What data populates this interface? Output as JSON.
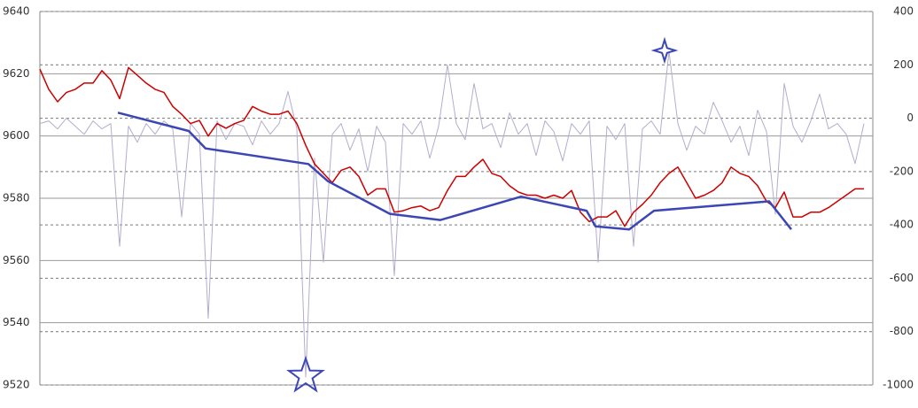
{
  "chart_data": {
    "type": "line",
    "ylim": [
      9520,
      9640
    ],
    "yticks": [
      9520,
      9540,
      9560,
      9580,
      9600,
      9620,
      9640
    ],
    "y2lim": [
      -1000,
      400
    ],
    "y2ticks": [
      -1000,
      -800,
      -600,
      -400,
      -200,
      0,
      200,
      400
    ],
    "xlim": [
      0,
      470
    ],
    "grid": true,
    "x": [
      0,
      5,
      10,
      15,
      20,
      25,
      30,
      35,
      40,
      45,
      50,
      55,
      60,
      65,
      70,
      75,
      80,
      85,
      90,
      95,
      100,
      105,
      110,
      115,
      120,
      125,
      130,
      135,
      140,
      145,
      150,
      155,
      160,
      165,
      170,
      175,
      180,
      185,
      190,
      195,
      200,
      205,
      210,
      215,
      220,
      225,
      230,
      235,
      240,
      245,
      250,
      255,
      260,
      265,
      270,
      275,
      280,
      285,
      290,
      295,
      300,
      305,
      310,
      315,
      320,
      325,
      330,
      335,
      340,
      345,
      350,
      355,
      360,
      365,
      370,
      375,
      380,
      385,
      390,
      395,
      400,
      405,
      410,
      415,
      420,
      425,
      430,
      435,
      440,
      445,
      450,
      455,
      460,
      465
    ],
    "series": [
      {
        "color": "#cc0000",
        "values": [
          9621.5,
          9615,
          9611,
          9614,
          9615,
          9617,
          9617,
          9621,
          9618,
          9612,
          9622,
          9619.5,
          9617,
          9615,
          9614,
          9609.5,
          9607,
          9604,
          9605,
          9600,
          9604,
          9602.5,
          9604,
          9605,
          9609.5,
          9608,
          9607,
          9607,
          9608,
          9604,
          9597,
          9591,
          9588,
          9585,
          9589,
          9590,
          9587,
          9581,
          9583,
          9583,
          9575.5,
          9576,
          9577,
          9577.5,
          9576,
          9577,
          9582.5,
          9587,
          9587,
          9590,
          9592.5,
          9588,
          9587,
          9584,
          9582,
          9581,
          9581,
          9580,
          9581,
          9580,
          9582.5,
          9575.5,
          9572.5,
          9574,
          9574,
          9576,
          9571,
          9575.5,
          9578,
          9581,
          9585,
          9588,
          9590,
          9585,
          9580,
          9581,
          9582.5,
          9585,
          9590,
          9588,
          9587,
          9584,
          9579,
          9577,
          9582,
          9574,
          9574,
          9575.5,
          9575.5,
          9577,
          9579,
          9581,
          9583,
          9583
        ]
      },
      {
        "color": "#b4acd0",
        "axis": "y2",
        "values": [
          -20,
          -10,
          -40,
          0,
          -30,
          -60,
          -10,
          -40,
          -20,
          -480,
          -30,
          -90,
          -20,
          -60,
          -10,
          -40,
          -370,
          -20,
          -60,
          -750,
          -10,
          -80,
          -20,
          -30,
          -100,
          -10,
          -60,
          -20,
          100,
          -40,
          -970,
          -150,
          -540,
          -60,
          -20,
          -120,
          -40,
          -200,
          -30,
          -90,
          -590,
          -20,
          -60,
          -10,
          -150,
          -30,
          200,
          -20,
          -80,
          130,
          -40,
          -20,
          -110,
          20,
          -60,
          -20,
          -140,
          -10,
          -50,
          -160,
          -20,
          -60,
          -10,
          -540,
          -30,
          -80,
          -20,
          -480,
          -40,
          -10,
          -60,
          250,
          -20,
          -120,
          -30,
          -60,
          60,
          -10,
          -90,
          -30,
          -140,
          30,
          -50,
          -360,
          130,
          -30,
          -90,
          -10,
          90,
          -40,
          -20,
          -60,
          -170,
          -20
        ]
      },
      {
        "color": "#3c46b4",
        "x": [
          44,
          84,
          93.5,
          151.5,
          162.5,
          197.5,
          226,
          271.5,
          308.5,
          313.5,
          332.5,
          346.5,
          411.5,
          424
        ],
        "values": [
          9607.5,
          9601.6,
          9596,
          9591,
          9585.5,
          9575,
          9573,
          9580.5,
          9576,
          9571,
          9570,
          9576,
          9579,
          9570
        ]
      },
      {
        "color": "#3c46b4",
        "axis": "y2",
        "marker": "star",
        "markers": [
          "star5",
          "star4"
        ],
        "x": [
          150,
          352.5
        ],
        "values": [
          -967,
          254
        ]
      }
    ]
  }
}
